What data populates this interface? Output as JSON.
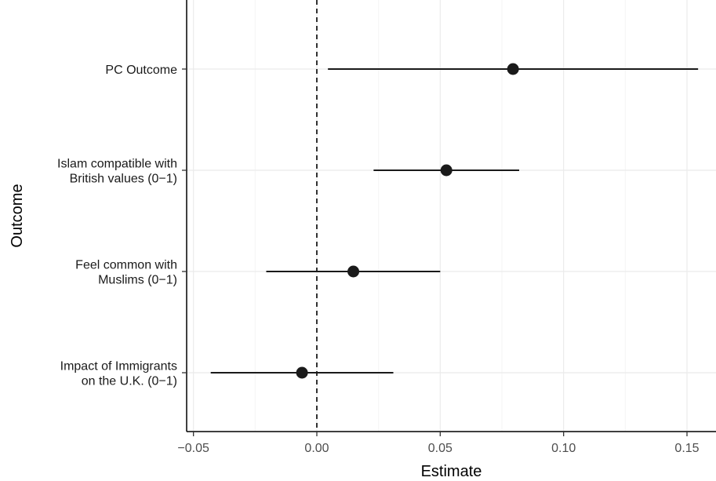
{
  "chart_data": {
    "type": "scatter",
    "variant": "coefficient-plot-with-error-bars",
    "xlabel": "Estimate",
    "ylabel": "Outcome",
    "xlim": [
      -0.053,
      0.16
    ],
    "x_ticks": [
      -0.05,
      0.0,
      0.05,
      0.1,
      0.15
    ],
    "x_tick_labels": [
      "−0.05",
      "0.00",
      "0.05",
      "0.10",
      "0.15"
    ],
    "reference_line": {
      "x": 0,
      "style": "dashed"
    },
    "grid": true,
    "categories": [
      [
        "PC Outcome"
      ],
      [
        "Islam compatible with",
        "British values (0−1)"
      ],
      [
        "Feel common with",
        "Muslims (0−1)"
      ],
      [
        "Impact of Immigrants",
        "on the U.K. (0−1)"
      ]
    ],
    "points": [
      {
        "estimate": 0.0795,
        "lower": 0.0045,
        "upper": 0.1545
      },
      {
        "estimate": 0.0525,
        "lower": 0.023,
        "upper": 0.082
      },
      {
        "estimate": 0.0148,
        "lower": -0.0205,
        "upper": 0.05
      },
      {
        "estimate": -0.006,
        "lower": -0.043,
        "upper": 0.031
      }
    ],
    "colors": {
      "point": "#1a1a1a",
      "line": "#1a1a1a",
      "grid": "#ebebeb",
      "axis": "#000000"
    }
  }
}
